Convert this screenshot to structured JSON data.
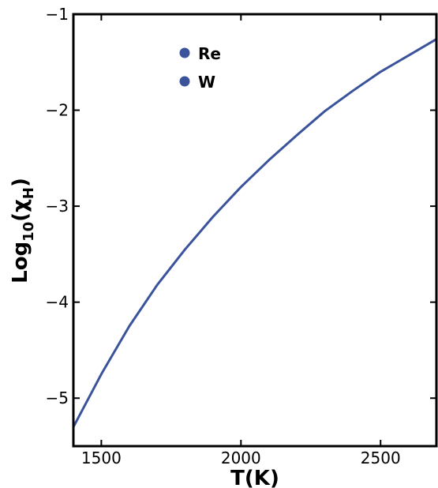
{
  "chart_data": {
    "type": "line",
    "title": "",
    "xlabel": "T(K)",
    "ylabel_main": "Log",
    "ylabel_sub": "10",
    "ylabel_open": "(χ",
    "ylabel_sub2": "H",
    "ylabel_close": ")",
    "xlim": [
      1400,
      2700
    ],
    "ylim": [
      -5.5,
      -1
    ],
    "xticks": [
      1500,
      2000,
      2500
    ],
    "xtick_labels": [
      "1500",
      "2000",
      "2500"
    ],
    "yticks": [
      -5,
      -4,
      -3,
      -2,
      -1
    ],
    "ytick_labels": [
      "−5",
      "−4",
      "−3",
      "−2",
      "−1"
    ],
    "grid": false,
    "legend_position": "top-left",
    "series": [
      {
        "name": "Re",
        "color": "#3a539b",
        "x": [],
        "y": []
      },
      {
        "name": "W",
        "color": "#3a539b",
        "x": [
          1400,
          1500,
          1600,
          1700,
          1800,
          1900,
          2000,
          2100,
          2200,
          2300,
          2400,
          2500,
          2600,
          2700
        ],
        "y": [
          -5.3,
          -4.75,
          -4.25,
          -3.82,
          -3.45,
          -3.11,
          -2.8,
          -2.52,
          -2.26,
          -2.01,
          -1.8,
          -1.6,
          -1.43,
          -1.26
        ]
      }
    ]
  }
}
